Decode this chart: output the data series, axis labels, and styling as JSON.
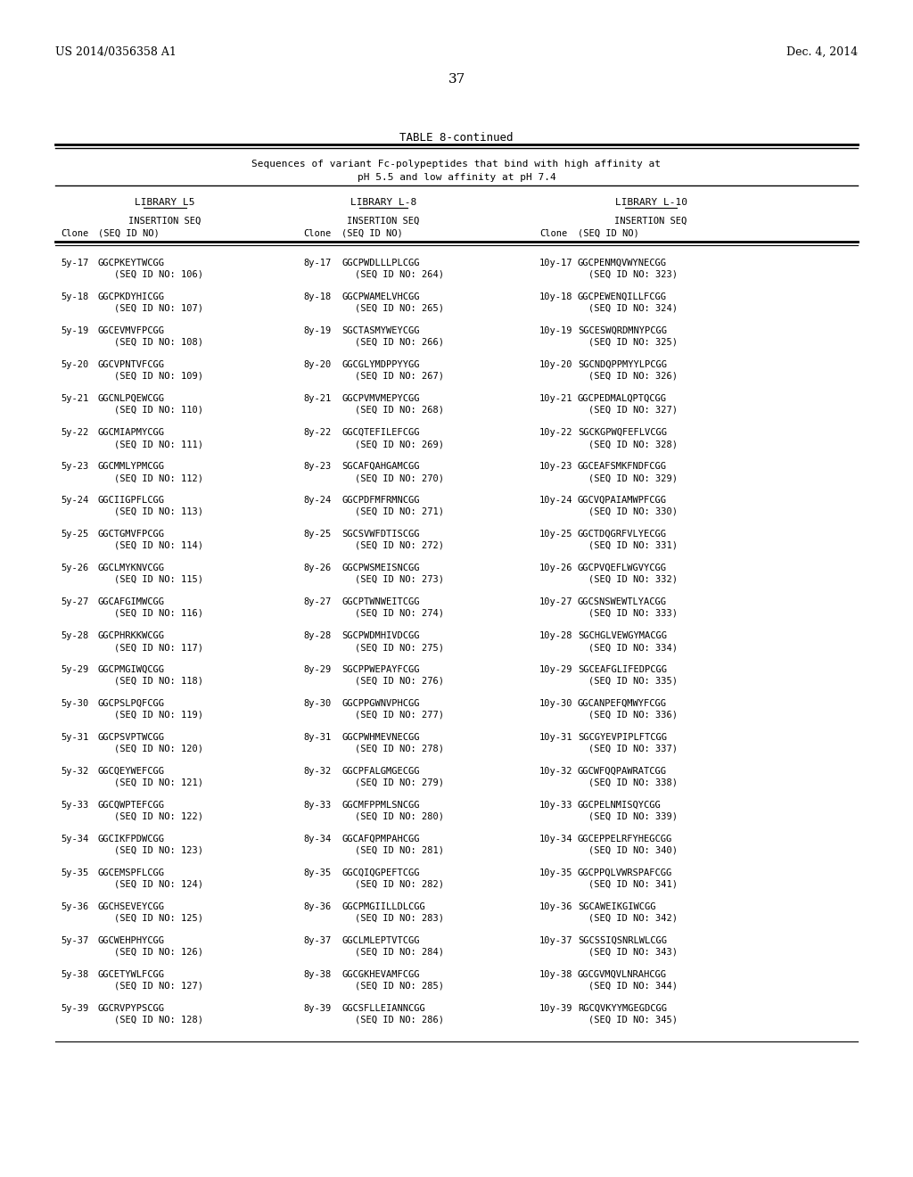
{
  "page_header_left": "US 2014/0356358 A1",
  "page_header_right": "Dec. 4, 2014",
  "page_number": "37",
  "table_title": "TABLE 8-continued",
  "table_subtitle1": "Sequences of variant Fc-polypeptides that bind with high affinity at",
  "table_subtitle2": "pH 5.5 and low affinity at pH 7.4",
  "col1_header": "LIBRARY L5",
  "col2_header": "LIBRARY L-8",
  "col3_header": "LIBRARY L-10",
  "subheader1": "INSERTION SEQ",
  "subheader2": "(SEQ ID NO)",
  "clone_label": "Clone",
  "rows": [
    [
      "5y-17",
      "GGCPKEYTWCGG",
      "106",
      "8y-17",
      "GGCPWDLLLPLCGG",
      "264",
      "10y-17",
      "GGCPENMQVWYNECGG",
      "323"
    ],
    [
      "5y-18",
      "GGCPKDYHICGG",
      "107",
      "8y-18",
      "GGCPWAMELVHCGG",
      "265",
      "10y-18",
      "GGCPEWENQILLFCGG",
      "324"
    ],
    [
      "5y-19",
      "GGCEVMVFPCGG",
      "108",
      "8y-19",
      "SGCTASMYWEYCGG",
      "266",
      "10y-19",
      "SGCESWQRDMNYPCGG",
      "325"
    ],
    [
      "5y-20",
      "GGCVPNTVFCGG",
      "109",
      "8y-20",
      "GGCGLYMDPPYYGG",
      "267",
      "10y-20",
      "SGCNDQPPMYYLPCGG",
      "326"
    ],
    [
      "5y-21",
      "GGCNLPQEWCGG",
      "110",
      "8y-21",
      "GGCPVMVMEPYCGG",
      "268",
      "10y-21",
      "GGCPEDMALQPTQCGG",
      "327"
    ],
    [
      "5y-22",
      "GGCMIAPMYCGG",
      "111",
      "8y-22",
      "GGCQTEFILEFCGG",
      "269",
      "10y-22",
      "SGCKGPWQFEFLVCGG",
      "328"
    ],
    [
      "5y-23",
      "GGCMMLYPMCGG",
      "112",
      "8y-23",
      "SGCAFQAHGAMCGG",
      "270",
      "10y-23",
      "GGCEAFSMKFNDFCGG",
      "329"
    ],
    [
      "5y-24",
      "GGCIIGPFLCGG",
      "113",
      "8y-24",
      "GGCPDFMFRMNCGG",
      "271",
      "10y-24",
      "GGCVQPAIAMWPFCGG",
      "330"
    ],
    [
      "5y-25",
      "GGCTGMVFPCGG",
      "114",
      "8y-25",
      "SGCSVWFDTISCGG",
      "272",
      "10y-25",
      "GGCTDQGRFVLYECGG",
      "331"
    ],
    [
      "5y-26",
      "GGCLMYKNVCGG",
      "115",
      "8y-26",
      "GGCPWSMEISNCGG",
      "273",
      "10y-26",
      "GGCPVQEFLWGVYCGG",
      "332"
    ],
    [
      "5y-27",
      "GGCAFGIMWCGG",
      "116",
      "8y-27",
      "GGCPTWNWEITCGG",
      "274",
      "10y-27",
      "GGCSNSWEWTLYACGG",
      "333"
    ],
    [
      "5y-28",
      "GGCPHRKKWCGG",
      "117",
      "8y-28",
      "SGCPWDMHIVDCGG",
      "275",
      "10y-28",
      "SGCHGLVEWGYMACGG",
      "334"
    ],
    [
      "5y-29",
      "GGCPMGIWQCGG",
      "118",
      "8y-29",
      "SGCPPWEPAYFCGG",
      "276",
      "10y-29",
      "SGCEAFGLIFEDPCGG",
      "335"
    ],
    [
      "5y-30",
      "GGCPSLPQFCGG",
      "119",
      "8y-30",
      "GGCPPGWNVPHCGG",
      "277",
      "10y-30",
      "GGCANPEFQMWYFCGG",
      "336"
    ],
    [
      "5y-31",
      "GGCPSVPTWCGG",
      "120",
      "8y-31",
      "GGCPWHMEVNECGG",
      "278",
      "10y-31",
      "SGCGYEVPIPLFTCGG",
      "337"
    ],
    [
      "5y-32",
      "GGCQEYWEFCGG",
      "121",
      "8y-32",
      "GGCPFALGMGECGG",
      "279",
      "10y-32",
      "GGCWFQQPAWRATCGG",
      "338"
    ],
    [
      "5y-33",
      "GGCQWPTEFCGG",
      "122",
      "8y-33",
      "GGCMFPPMLSNCGG",
      "280",
      "10y-33",
      "GGCPELNMISQYCGG",
      "339"
    ],
    [
      "5y-34",
      "GGCIKFPDWCGG",
      "123",
      "8y-34",
      "GGCAFQPMPAHCGG",
      "281",
      "10y-34",
      "GGCEPPELRFYHEGCGG",
      "340"
    ],
    [
      "5y-35",
      "GGCEMSPFLCGG",
      "124",
      "8y-35",
      "GGCQIQGPEFTCGG",
      "282",
      "10y-35",
      "GGCPPQLVWRSPAFCGG",
      "341"
    ],
    [
      "5y-36",
      "GGCHSEVEYCGG",
      "125",
      "8y-36",
      "GGCPMGIILLDLCGG",
      "283",
      "10y-36",
      "SGCAWEIKGIWCGG",
      "342"
    ],
    [
      "5y-37",
      "GGCWEHPHYCGG",
      "126",
      "8y-37",
      "GGCLMLEPTVTCGG",
      "284",
      "10y-37",
      "SGCSSIQSNRLWLCGG",
      "343"
    ],
    [
      "5y-38",
      "GGCETYWLFCGG",
      "127",
      "8y-38",
      "GGCGKHEVAMFCGG",
      "285",
      "10y-38",
      "GGCGVMQVLNRAHCGG",
      "344"
    ],
    [
      "5y-39",
      "GGCRVPYPSCGG",
      "128",
      "8y-39",
      "GGCSFLLEIANNCGG",
      "286",
      "10y-39",
      "RGCQVKYYMGEGDCGG",
      "345"
    ]
  ],
  "background_color": "#ffffff",
  "text_color": "#000000"
}
